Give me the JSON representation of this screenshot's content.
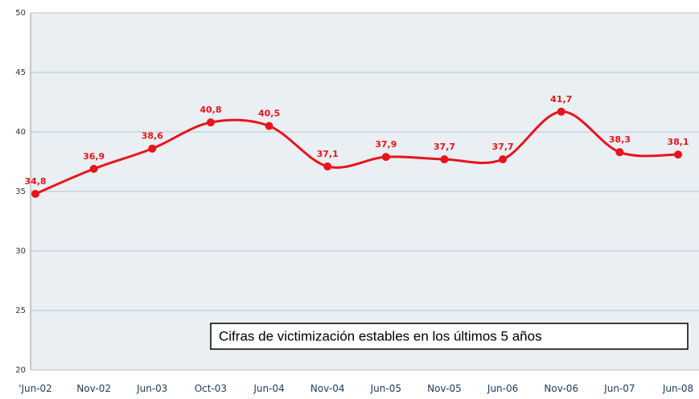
{
  "chart_data": {
    "type": "line",
    "categories": [
      "'Jun-02",
      "Nov-02",
      "Jun-03",
      "Oct-03",
      "Jun-04",
      "Nov-04",
      "Jun-05",
      "Nov-05",
      "Jun-06",
      "Nov-06",
      "Jun-07",
      "Jun-08"
    ],
    "values": [
      34.8,
      36.9,
      38.6,
      40.8,
      40.5,
      37.1,
      37.9,
      37.7,
      37.7,
      41.7,
      38.3,
      38.1
    ],
    "value_labels": [
      "34,8",
      "36,9",
      "38,6",
      "40,8",
      "40,5",
      "37,1",
      "37,9",
      "37,7",
      "37,7",
      "41,7",
      "38,3",
      "38,1"
    ],
    "color": "#e8141c",
    "ylim": [
      20,
      50
    ],
    "yticks": [
      20,
      25,
      30,
      35,
      40,
      45,
      50
    ],
    "grid": true,
    "annotation": "Cifras de victimización estables en los últimos 5 años"
  }
}
